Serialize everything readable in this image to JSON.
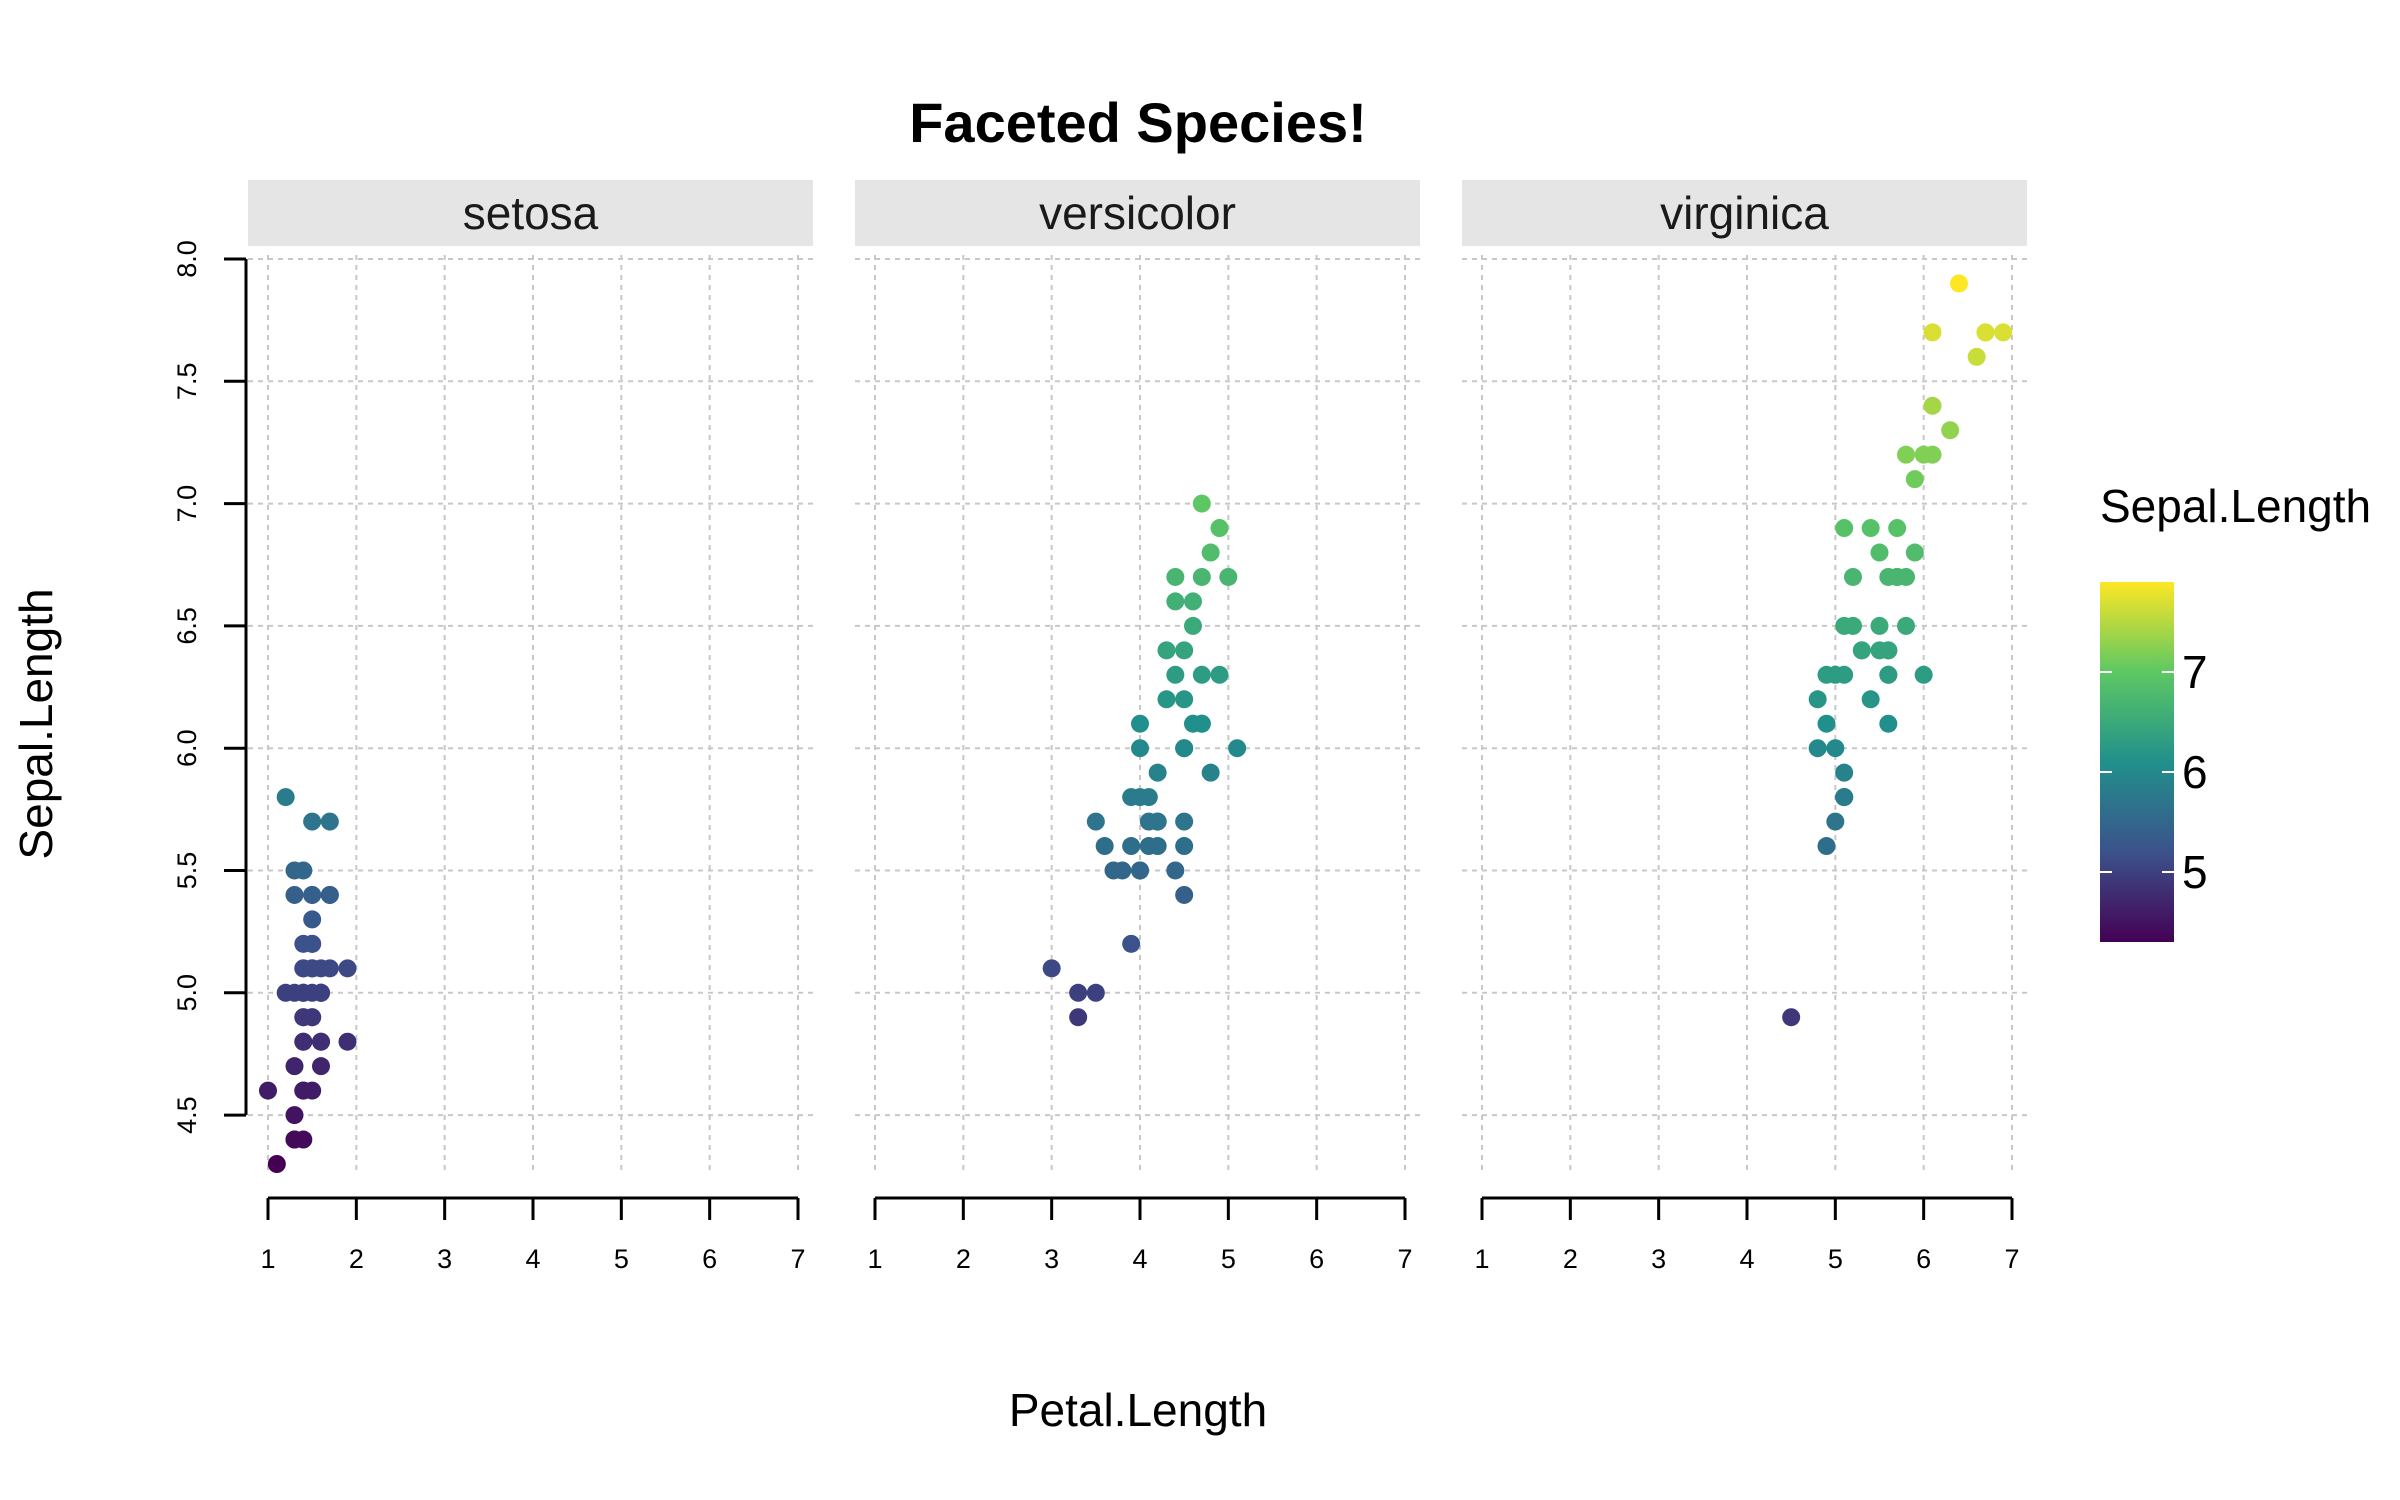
{
  "chart_data": {
    "type": "scatter",
    "title": "Faceted Species!",
    "xlabel": "Petal.Length",
    "ylabel": "Sepal.Length",
    "xlim": [
      1,
      7
    ],
    "ylim": [
      4.3,
      7.9
    ],
    "xticks": [
      "1",
      "2",
      "3",
      "4",
      "5",
      "6",
      "7"
    ],
    "yticks": [
      "4.5",
      "5.0",
      "5.5",
      "6.0",
      "6.5",
      "7.0",
      "7.5",
      "8.0"
    ],
    "grid": true,
    "facets": [
      {
        "name": "setosa",
        "points": [
          [
            1.4,
            5.1
          ],
          [
            1.4,
            4.9
          ],
          [
            1.3,
            4.7
          ],
          [
            1.5,
            4.6
          ],
          [
            1.4,
            5.0
          ],
          [
            1.7,
            5.4
          ],
          [
            1.4,
            4.6
          ],
          [
            1.5,
            5.0
          ],
          [
            1.4,
            4.4
          ],
          [
            1.5,
            4.9
          ],
          [
            1.5,
            5.4
          ],
          [
            1.6,
            4.8
          ],
          [
            1.4,
            4.8
          ],
          [
            1.1,
            4.3
          ],
          [
            1.2,
            5.8
          ],
          [
            1.5,
            5.7
          ],
          [
            1.3,
            5.4
          ],
          [
            1.4,
            5.1
          ],
          [
            1.7,
            5.7
          ],
          [
            1.5,
            5.1
          ],
          [
            1.7,
            5.4
          ],
          [
            1.5,
            5.1
          ],
          [
            1.0,
            4.6
          ],
          [
            1.7,
            5.1
          ],
          [
            1.9,
            4.8
          ],
          [
            1.6,
            5.0
          ],
          [
            1.6,
            5.0
          ],
          [
            1.5,
            5.2
          ],
          [
            1.4,
            5.2
          ],
          [
            1.6,
            4.7
          ],
          [
            1.6,
            4.8
          ],
          [
            1.5,
            5.4
          ],
          [
            1.5,
            5.2
          ],
          [
            1.4,
            5.5
          ],
          [
            1.5,
            4.9
          ],
          [
            1.2,
            5.0
          ],
          [
            1.3,
            5.5
          ],
          [
            1.4,
            4.9
          ],
          [
            1.3,
            4.4
          ],
          [
            1.5,
            5.1
          ],
          [
            1.3,
            5.0
          ],
          [
            1.3,
            4.5
          ],
          [
            1.3,
            4.4
          ],
          [
            1.6,
            5.0
          ],
          [
            1.9,
            5.1
          ],
          [
            1.4,
            4.8
          ],
          [
            1.6,
            5.1
          ],
          [
            1.4,
            4.6
          ],
          [
            1.5,
            5.3
          ],
          [
            1.4,
            5.0
          ]
        ]
      },
      {
        "name": "versicolor",
        "points": [
          [
            4.7,
            7.0
          ],
          [
            4.5,
            6.4
          ],
          [
            4.9,
            6.9
          ],
          [
            4.0,
            5.5
          ],
          [
            4.6,
            6.5
          ],
          [
            4.5,
            5.7
          ],
          [
            4.7,
            6.3
          ],
          [
            3.3,
            4.9
          ],
          [
            4.6,
            6.6
          ],
          [
            3.9,
            5.2
          ],
          [
            3.5,
            5.0
          ],
          [
            4.2,
            5.9
          ],
          [
            4.0,
            6.0
          ],
          [
            4.7,
            6.1
          ],
          [
            3.6,
            5.6
          ],
          [
            4.4,
            6.7
          ],
          [
            4.5,
            5.6
          ],
          [
            4.1,
            5.8
          ],
          [
            4.5,
            6.2
          ],
          [
            3.9,
            5.6
          ],
          [
            4.8,
            5.9
          ],
          [
            4.0,
            6.1
          ],
          [
            4.9,
            6.3
          ],
          [
            4.7,
            6.1
          ],
          [
            4.3,
            6.4
          ],
          [
            4.4,
            6.6
          ],
          [
            4.8,
            6.8
          ],
          [
            5.0,
            6.7
          ],
          [
            4.5,
            6.0
          ],
          [
            3.5,
            5.7
          ],
          [
            3.8,
            5.5
          ],
          [
            3.7,
            5.5
          ],
          [
            3.9,
            5.8
          ],
          [
            5.1,
            6.0
          ],
          [
            4.5,
            5.4
          ],
          [
            4.5,
            6.0
          ],
          [
            4.7,
            6.7
          ],
          [
            4.4,
            6.3
          ],
          [
            4.1,
            5.6
          ],
          [
            4.0,
            5.5
          ],
          [
            4.4,
            5.5
          ],
          [
            4.6,
            6.1
          ],
          [
            4.0,
            5.8
          ],
          [
            3.3,
            5.0
          ],
          [
            4.2,
            5.6
          ],
          [
            4.2,
            5.7
          ],
          [
            4.2,
            5.7
          ],
          [
            4.3,
            6.2
          ],
          [
            3.0,
            5.1
          ],
          [
            4.1,
            5.7
          ]
        ]
      },
      {
        "name": "virginica",
        "points": [
          [
            6.0,
            6.3
          ],
          [
            5.1,
            5.8
          ],
          [
            5.9,
            7.1
          ],
          [
            5.6,
            6.3
          ],
          [
            5.8,
            6.5
          ],
          [
            6.6,
            7.6
          ],
          [
            4.5,
            4.9
          ],
          [
            6.3,
            7.3
          ],
          [
            5.8,
            6.7
          ],
          [
            6.1,
            7.2
          ],
          [
            5.1,
            6.5
          ],
          [
            5.3,
            6.4
          ],
          [
            5.5,
            6.8
          ],
          [
            5.0,
            5.7
          ],
          [
            5.1,
            5.8
          ],
          [
            5.3,
            6.4
          ],
          [
            5.5,
            6.5
          ],
          [
            6.7,
            7.7
          ],
          [
            6.9,
            7.7
          ],
          [
            5.0,
            6.0
          ],
          [
            5.7,
            6.9
          ],
          [
            4.9,
            5.6
          ],
          [
            6.7,
            7.7
          ],
          [
            4.9,
            6.3
          ],
          [
            5.7,
            6.7
          ],
          [
            6.0,
            7.2
          ],
          [
            4.8,
            6.2
          ],
          [
            4.9,
            6.1
          ],
          [
            5.6,
            6.4
          ],
          [
            5.8,
            7.2
          ],
          [
            6.1,
            7.4
          ],
          [
            6.4,
            7.9
          ],
          [
            5.6,
            6.4
          ],
          [
            5.1,
            6.3
          ],
          [
            5.6,
            6.1
          ],
          [
            6.1,
            7.7
          ],
          [
            5.6,
            6.3
          ],
          [
            5.5,
            6.4
          ],
          [
            4.8,
            6.0
          ],
          [
            5.4,
            6.9
          ],
          [
            5.6,
            6.7
          ],
          [
            5.1,
            6.9
          ],
          [
            5.1,
            5.8
          ],
          [
            5.9,
            6.8
          ],
          [
            5.7,
            6.7
          ],
          [
            5.2,
            6.7
          ],
          [
            5.0,
            6.3
          ],
          [
            5.2,
            6.5
          ],
          [
            5.4,
            6.2
          ],
          [
            5.1,
            5.9
          ]
        ]
      }
    ],
    "color_legend": {
      "title": "Sepal.Length",
      "variable": "y",
      "range": [
        4.3,
        7.9
      ],
      "breaks": [
        "5",
        "6",
        "7"
      ],
      "palette": [
        "#440154",
        "#3b528b",
        "#21908c",
        "#5dc863",
        "#fde725"
      ]
    },
    "colors": {
      "strip_background": "#e5e5e5",
      "grid": "#c8c8c8",
      "axis": "#000000"
    }
  }
}
